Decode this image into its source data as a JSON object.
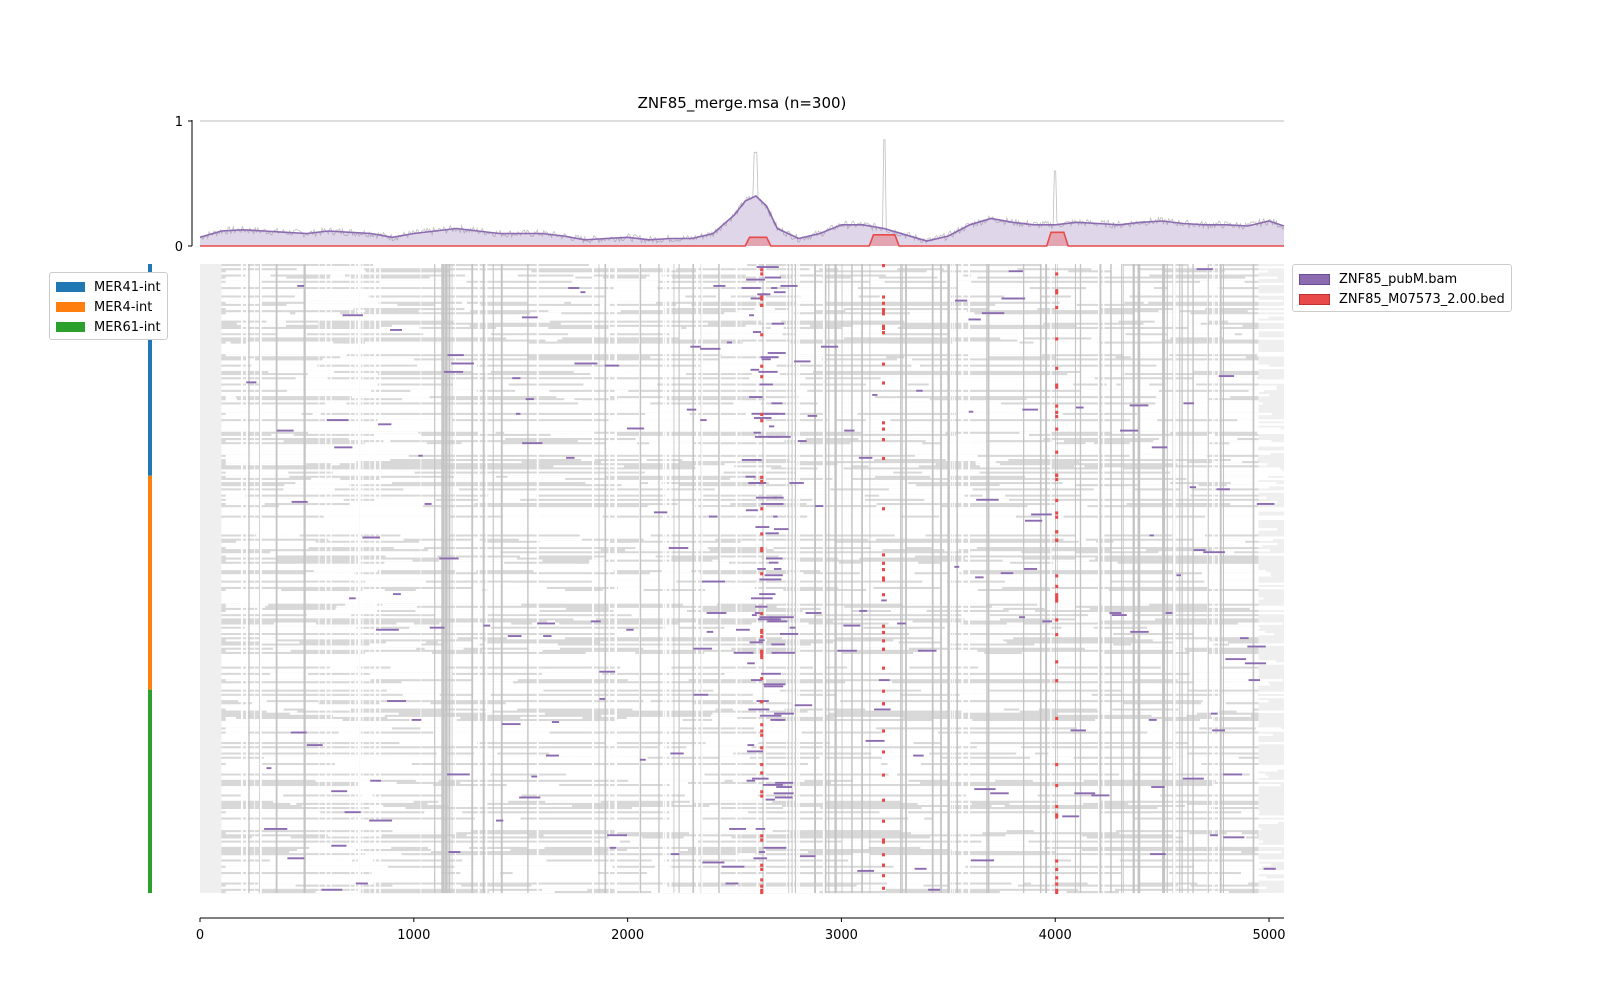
{
  "chart_data": [
    {
      "type": "area",
      "title": "ZNF85_merge.msa (n=300)",
      "xlim": [
        0,
        5070
      ],
      "ylim": [
        0,
        1
      ],
      "y_ticks": [
        "0",
        "1"
      ],
      "series": [
        {
          "name": "ZNF85_pubM.bam",
          "color": "#8c6bb1",
          "x": [
            0,
            100,
            200,
            300,
            400,
            500,
            600,
            700,
            800,
            900,
            1000,
            1100,
            1200,
            1300,
            1400,
            1500,
            1600,
            1700,
            1800,
            1900,
            2000,
            2100,
            2200,
            2300,
            2400,
            2500,
            2550,
            2600,
            2650,
            2700,
            2800,
            2900,
            3000,
            3100,
            3200,
            3300,
            3400,
            3500,
            3600,
            3700,
            3800,
            3900,
            4000,
            4100,
            4200,
            4300,
            4400,
            4500,
            4600,
            4700,
            4800,
            4900,
            5000,
            5070
          ],
          "values": [
            0.07,
            0.12,
            0.13,
            0.12,
            0.11,
            0.1,
            0.12,
            0.11,
            0.1,
            0.07,
            0.1,
            0.12,
            0.14,
            0.12,
            0.1,
            0.1,
            0.1,
            0.08,
            0.05,
            0.06,
            0.07,
            0.05,
            0.06,
            0.06,
            0.1,
            0.25,
            0.36,
            0.4,
            0.32,
            0.14,
            0.06,
            0.1,
            0.17,
            0.17,
            0.14,
            0.09,
            0.04,
            0.08,
            0.17,
            0.22,
            0.19,
            0.17,
            0.17,
            0.19,
            0.18,
            0.17,
            0.19,
            0.2,
            0.18,
            0.17,
            0.17,
            0.16,
            0.2,
            0.16
          ]
        },
        {
          "name": "ZNF85_M07573_2.00.bed",
          "color": "#e84a4a",
          "x": [
            0,
            2550,
            2570,
            2650,
            2670,
            3130,
            3150,
            3250,
            3270,
            3960,
            3980,
            4040,
            4060,
            5070
          ],
          "values": [
            0,
            0,
            0.07,
            0.07,
            0,
            0,
            0.09,
            0.09,
            0,
            0,
            0.11,
            0.11,
            0,
            0
          ]
        }
      ]
    },
    {
      "type": "heatmap",
      "rows": 300,
      "x_ticks": [
        0,
        1000,
        2000,
        3000,
        4000,
        5000
      ],
      "x_tick_labels": [
        "0",
        "1000",
        "2000",
        "3000",
        "4000",
        "5000"
      ],
      "xlim": [
        0,
        5070
      ],
      "row_groups": [
        {
          "name": "MER41-int",
          "color": "#1f77b4",
          "rows": 101
        },
        {
          "name": "MER4-int",
          "color": "#ff7f0e",
          "rows": 102
        },
        {
          "name": "MER61-int",
          "color": "#2ca02c",
          "rows": 97
        }
      ],
      "signal_hotspots": [
        {
          "name": "ZNF85_pubM.bam",
          "color": "#8c6bb1",
          "x": [
            2600,
            2650
          ]
        },
        {
          "name": "ZNF85_M07573_2.00.bed",
          "color": "#e84a4a",
          "x": [
            2620,
            3190,
            4000
          ]
        }
      ],
      "colors": {
        "alignment": "#d8d8d8",
        "background": "#efefef",
        "gap": "#ffffff"
      }
    }
  ],
  "legends": {
    "groups": [
      {
        "label": "MER41-int",
        "color": "#1f77b4"
      },
      {
        "label": "MER4-int",
        "color": "#ff7f0e"
      },
      {
        "label": "MER61-int",
        "color": "#2ca02c"
      }
    ],
    "tracks": [
      {
        "label": "ZNF85_pubM.bam",
        "color": "#8c6bb1"
      },
      {
        "label": "ZNF85_M07573_2.00.bed",
        "color": "#e84a4a"
      }
    ]
  }
}
